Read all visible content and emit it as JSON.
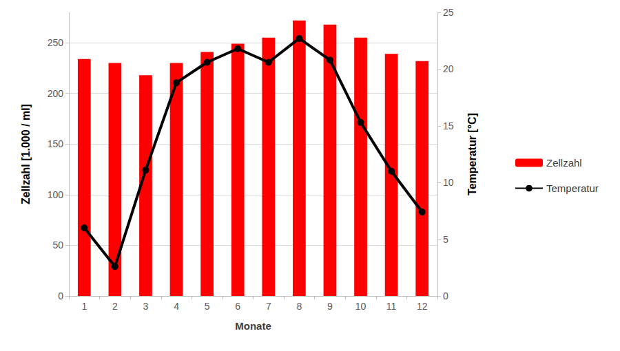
{
  "chart_data": {
    "type": "bar",
    "x_label": "Monate",
    "y_label": "Zellzahl [1.000 / ml]",
    "y2_label": "Temperatur [°C]",
    "categories": [
      "1",
      "2",
      "3",
      "4",
      "5",
      "6",
      "7",
      "8",
      "9",
      "10",
      "11",
      "12"
    ],
    "series": [
      {
        "name": "Zellzahl",
        "type": "bar",
        "color": "#ff0000",
        "values": [
          234,
          230,
          218,
          230,
          241,
          249,
          255,
          272,
          268,
          255,
          239,
          232
        ]
      },
      {
        "name": "Temperatur",
        "type": "line",
        "color": "#000000",
        "marker": "circle",
        "axis": "y2",
        "values": [
          6.0,
          2.6,
          11.1,
          18.8,
          20.6,
          21.8,
          20.6,
          22.7,
          20.8,
          15.3,
          11.0,
          7.4
        ]
      }
    ],
    "ylim": [
      0,
      280
    ],
    "yticks": [
      0,
      50,
      100,
      150,
      200,
      250
    ],
    "y2lim": [
      0,
      25
    ],
    "y2ticks": [
      0,
      5,
      10,
      15,
      20,
      25
    ],
    "grid": true,
    "legend": "right"
  }
}
